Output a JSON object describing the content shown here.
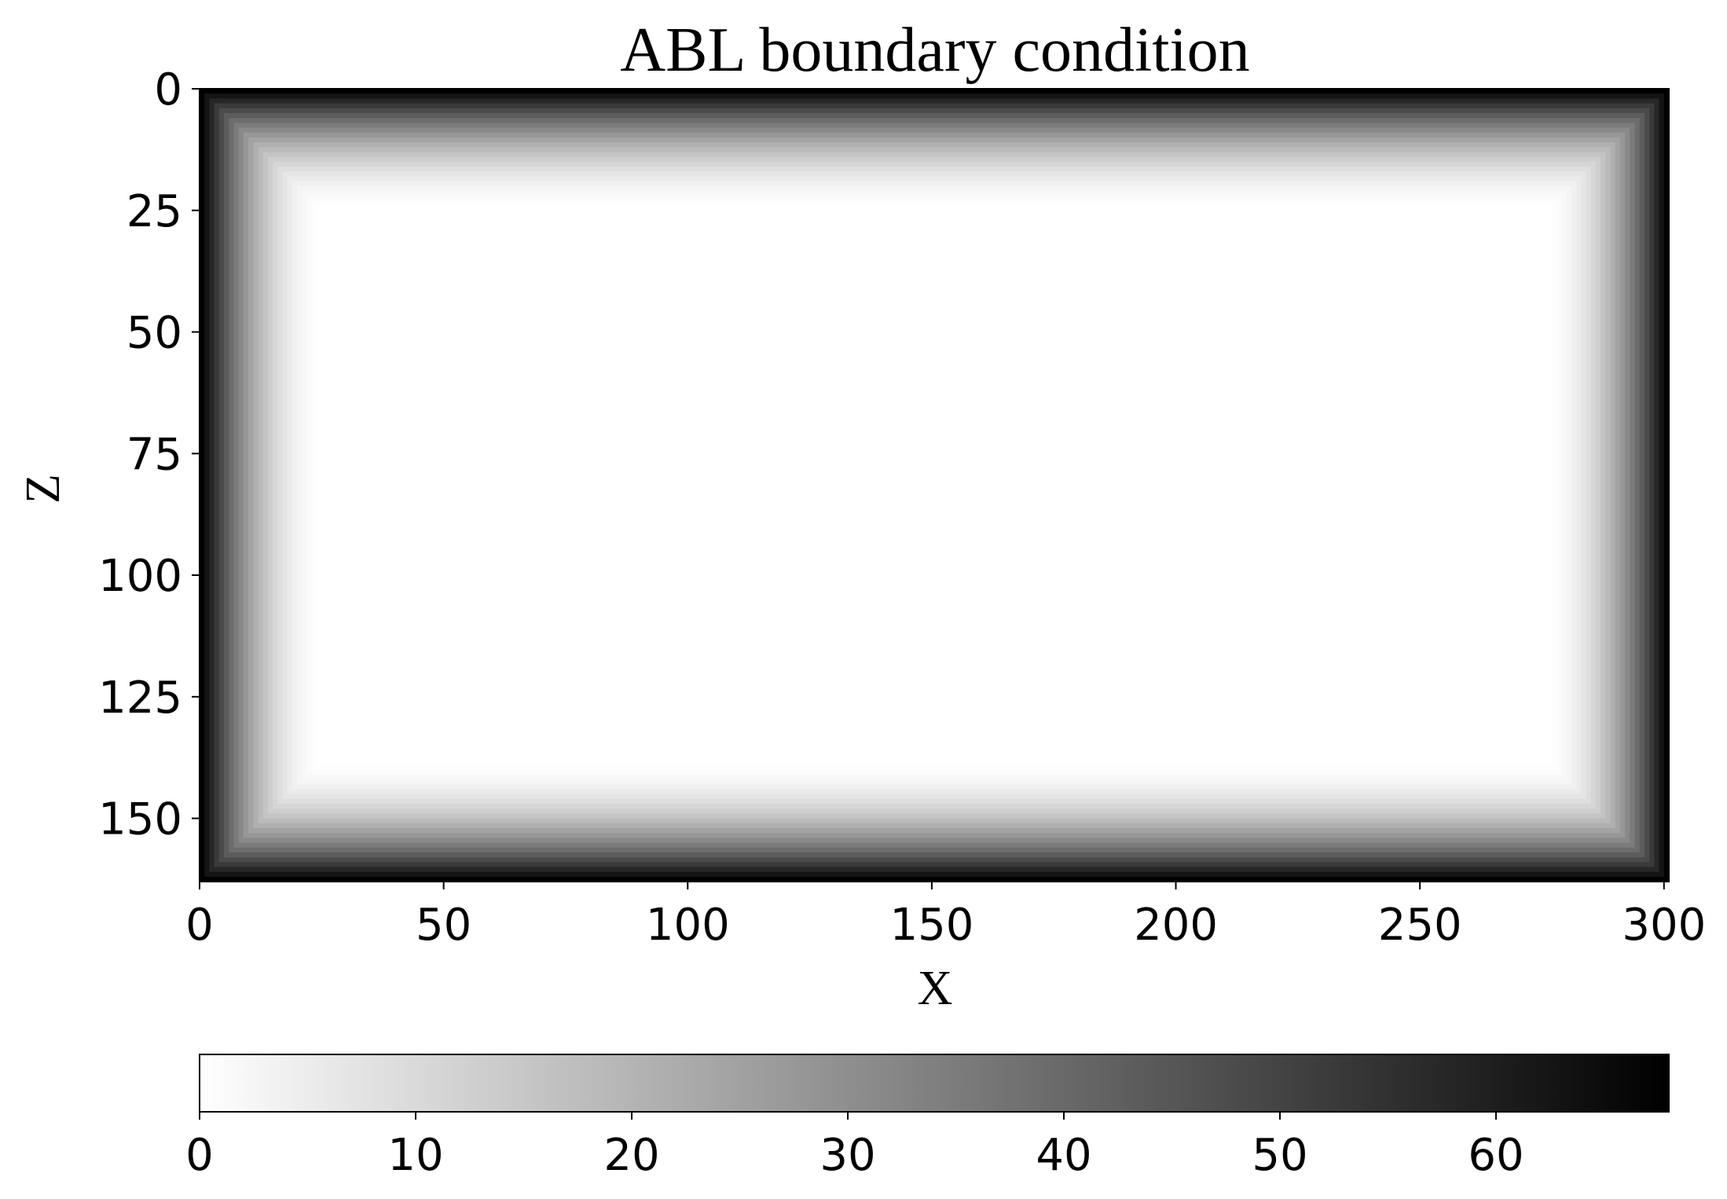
{
  "chart_data": {
    "type": "heatmap",
    "title": "ABL boundary condition",
    "xlabel": "X",
    "ylabel": "Z",
    "xlim": [
      0,
      301
    ],
    "ylim": [
      163,
      0
    ],
    "x_ticks": [
      {
        "value": 0,
        "label": "0"
      },
      {
        "value": 50,
        "label": "50"
      },
      {
        "value": 100,
        "label": "100"
      },
      {
        "value": 150,
        "label": "150"
      },
      {
        "value": 200,
        "label": "200"
      },
      {
        "value": 250,
        "label": "250"
      },
      {
        "value": 300,
        "label": "300"
      }
    ],
    "y_ticks": [
      {
        "value": 0,
        "label": "0"
      },
      {
        "value": 25,
        "label": "25"
      },
      {
        "value": 50,
        "label": "50"
      },
      {
        "value": 75,
        "label": "75"
      },
      {
        "value": 100,
        "label": "100"
      },
      {
        "value": 125,
        "label": "125"
      },
      {
        "value": 150,
        "label": "150"
      }
    ],
    "grid": {
      "nx": 301,
      "nz": 163,
      "absorbing_layer_thickness": 25,
      "max_value": 68,
      "interior_value": 0
    },
    "colormap": "gray_r",
    "colorbar": {
      "orientation": "horizontal",
      "range": [
        0,
        68
      ],
      "ticks": [
        {
          "value": 0,
          "label": "0"
        },
        {
          "value": 10,
          "label": "10"
        },
        {
          "value": 20,
          "label": "20"
        },
        {
          "value": 30,
          "label": "30"
        },
        {
          "value": 40,
          "label": "40"
        },
        {
          "value": 50,
          "label": "50"
        },
        {
          "value": 60,
          "label": "60"
        }
      ]
    }
  }
}
